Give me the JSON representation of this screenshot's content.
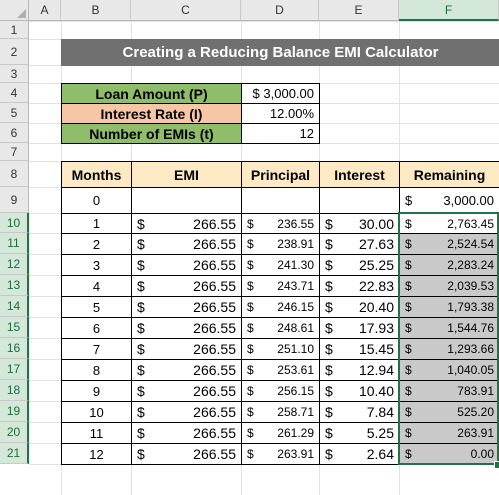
{
  "columns": [
    "A",
    "B",
    "C",
    "D",
    "E",
    "F"
  ],
  "rows": [
    "1",
    "2",
    "3",
    "4",
    "5",
    "6",
    "7",
    "8",
    "9",
    "10",
    "11",
    "12",
    "13",
    "14",
    "15",
    "16",
    "17",
    "18",
    "19",
    "20",
    "21"
  ],
  "title": "Creating a Reducing Balance EMI Calculator",
  "inputs": [
    {
      "label": "Loan Amount (P)",
      "value": "$ 3,000.00",
      "color": "#8fbd6a"
    },
    {
      "label": "Interest Rate (I)",
      "value": "12.00%",
      "color": "#f6c7a6"
    },
    {
      "label": "Number of EMIs (t)",
      "value": "12",
      "color": "#8fbd6a"
    }
  ],
  "table": {
    "headers": [
      "Months",
      "EMI",
      "Principal",
      "Interest",
      "Remaining"
    ],
    "currency": "$",
    "first_row": {
      "month": "0",
      "remaining": "$      3,000.00"
    },
    "rows": [
      {
        "month": "1",
        "emi": "266.55",
        "principal": "236.55",
        "interest": "30.00",
        "remaining": "2,763.45"
      },
      {
        "month": "2",
        "emi": "266.55",
        "principal": "238.91",
        "interest": "27.63",
        "remaining": "2,524.54"
      },
      {
        "month": "3",
        "emi": "266.55",
        "principal": "241.30",
        "interest": "25.25",
        "remaining": "2,283.24"
      },
      {
        "month": "4",
        "emi": "266.55",
        "principal": "243.71",
        "interest": "22.83",
        "remaining": "2,039.53"
      },
      {
        "month": "5",
        "emi": "266.55",
        "principal": "246.15",
        "interest": "20.40",
        "remaining": "1,793.38"
      },
      {
        "month": "6",
        "emi": "266.55",
        "principal": "248.61",
        "interest": "17.93",
        "remaining": "1,544.76"
      },
      {
        "month": "7",
        "emi": "266.55",
        "principal": "251.10",
        "interest": "15.45",
        "remaining": "1,293.66"
      },
      {
        "month": "8",
        "emi": "266.55",
        "principal": "253.61",
        "interest": "12.94",
        "remaining": "1,040.05"
      },
      {
        "month": "9",
        "emi": "266.55",
        "principal": "256.15",
        "interest": "10.40",
        "remaining": "783.91"
      },
      {
        "month": "10",
        "emi": "266.55",
        "principal": "258.71",
        "interest": "7.84",
        "remaining": "525.20"
      },
      {
        "month": "11",
        "emi": "266.55",
        "principal": "261.29",
        "interest": "5.25",
        "remaining": "263.91"
      },
      {
        "month": "12",
        "emi": "266.55",
        "principal": "263.91",
        "interest": "2.64",
        "remaining": "0.00"
      }
    ]
  },
  "colors": {
    "title_bg": "#707070",
    "header_bg": "#fde9c4",
    "selection": "#217346",
    "selected_fill": "#c9c9c9"
  }
}
